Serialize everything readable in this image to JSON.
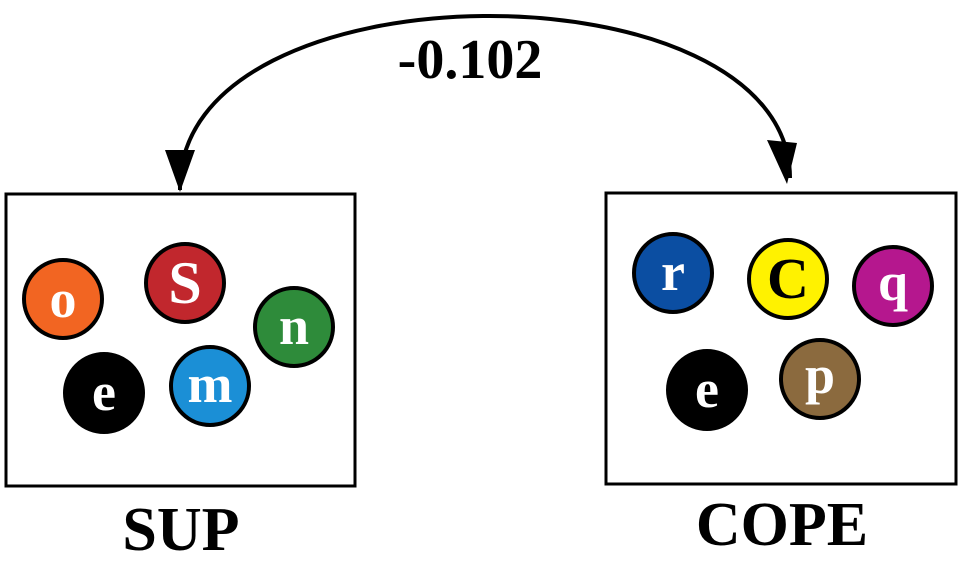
{
  "arrow": {
    "label": "-0.102"
  },
  "groups": [
    {
      "label": "SUP",
      "balls": [
        {
          "letter": "o",
          "color": "#f26522",
          "text_color": "#ffffff"
        },
        {
          "letter": "S",
          "color": "#c1272d",
          "text_color": "#ffffff"
        },
        {
          "letter": "n",
          "color": "#2e8b3a",
          "text_color": "#ffffff"
        },
        {
          "letter": "e",
          "color": "#000000",
          "text_color": "#ffffff"
        },
        {
          "letter": "m",
          "color": "#1b8fd6",
          "text_color": "#ffffff"
        }
      ]
    },
    {
      "label": "COPE",
      "balls": [
        {
          "letter": "r",
          "color": "#0b4ea2",
          "text_color": "#ffffff"
        },
        {
          "letter": "C",
          "color": "#fff200",
          "text_color": "#000000"
        },
        {
          "letter": "q",
          "color": "#b5178e",
          "text_color": "#ffffff"
        },
        {
          "letter": "e",
          "color": "#000000",
          "text_color": "#ffffff"
        },
        {
          "letter": "p",
          "color": "#8b6a3e",
          "text_color": "#ffffff"
        }
      ]
    }
  ]
}
